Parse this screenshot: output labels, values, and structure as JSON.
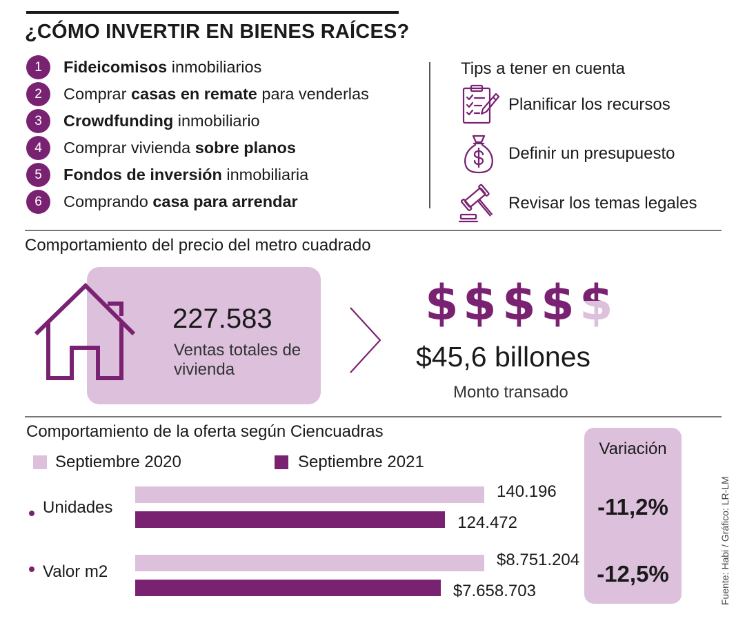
{
  "header": {
    "title": "¿CÓMO INVERTIR EN BIENES RAÍCES?"
  },
  "ways": [
    {
      "number": "1",
      "parts": [
        {
          "text": "Fideicomisos",
          "bold": true
        },
        {
          "text": " inmobiliarios",
          "bold": false
        }
      ]
    },
    {
      "number": "2",
      "parts": [
        {
          "text": "Comprar ",
          "bold": false
        },
        {
          "text": "casas en remate",
          "bold": true
        },
        {
          "text": " para venderlas",
          "bold": false
        }
      ]
    },
    {
      "number": "3",
      "parts": [
        {
          "text": "Crowdfunding",
          "bold": true
        },
        {
          "text": " inmobiliario",
          "bold": false
        }
      ]
    },
    {
      "number": "4",
      "parts": [
        {
          "text": "Comprar vivienda ",
          "bold": false
        },
        {
          "text": "sobre planos",
          "bold": true
        }
      ]
    },
    {
      "number": "5",
      "parts": [
        {
          "text": "Fondos de inversión",
          "bold": true
        },
        {
          "text": " inmobiliaria",
          "bold": false
        }
      ]
    },
    {
      "number": "6",
      "parts": [
        {
          "text": "Comprando ",
          "bold": false
        },
        {
          "text": "casa para arrendar",
          "bold": true
        }
      ]
    }
  ],
  "tips": {
    "title": "Tips a tener en cuenta",
    "items": [
      {
        "icon": "clipboard-checklist-icon",
        "label": "Planificar los recursos"
      },
      {
        "icon": "money-bag-icon",
        "label": "Definir un presupuesto"
      },
      {
        "icon": "gavel-icon",
        "label": "Revisar los temas legales"
      }
    ]
  },
  "price": {
    "title": "Comportamiento del precio del metro cuadrado",
    "sales_value": "227.583",
    "sales_label": "Ventas totales de vivienda",
    "amount_value": "$45,6 billones",
    "amount_label": "Monto transado",
    "icons": [
      "house-icon",
      "chevron-right-icon",
      "dollar-sign-icon"
    ]
  },
  "colors": {
    "accent": "#7a2272",
    "light": "#dcc0dc",
    "text": "#1a1a1a"
  },
  "chart_data": {
    "type": "bar",
    "orientation": "horizontal",
    "title": "Comportamiento de la oferta según Ciencuadras",
    "categories": [
      "Unidades",
      "Valor m2"
    ],
    "series": [
      {
        "name": "Septiembre 2020",
        "color": "#dcc0dc",
        "values": [
          140196,
          8751204
        ],
        "labels": [
          "140.196",
          "$8.751.204"
        ]
      },
      {
        "name": "Septiembre 2021",
        "color": "#7a2272",
        "values": [
          124472,
          7658703
        ],
        "labels": [
          "124.472",
          "$7.658.703"
        ]
      }
    ],
    "scale": "independent per category",
    "legend_position": "top",
    "grid": false
  },
  "variation": {
    "title": "Variación",
    "values": [
      "-11,2%",
      "-12,5%"
    ]
  },
  "source": "Fuente: Habi / Gráfico: LR-LM"
}
